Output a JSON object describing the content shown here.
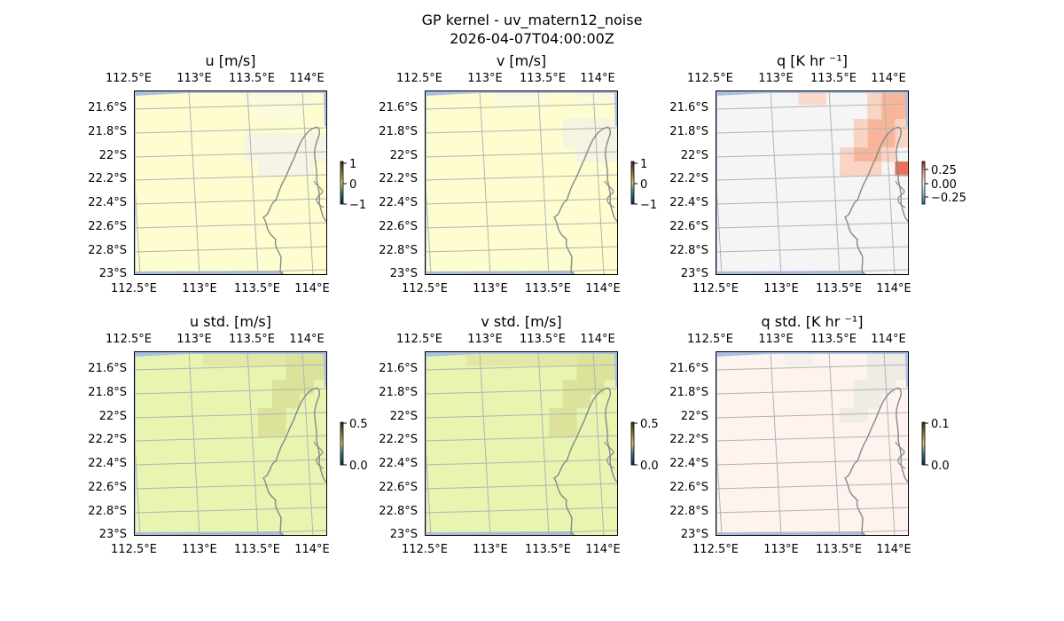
{
  "figure": {
    "title_line1": "GP kernel - uv_matern12_noise",
    "title_line2": "2026-04-07T04:00:00Z"
  },
  "axes": {
    "lon_ticks": [
      "112.5°E",
      "113°E",
      "113.5°E",
      "114°E"
    ],
    "lat_ticks": [
      "21.6°S",
      "21.8°S",
      "22°S",
      "22.2°S",
      "22.4°S",
      "22.6°S",
      "22.8°S",
      "23°S"
    ]
  },
  "colors": {
    "ocean": "#a9bfe3",
    "coast": "#888888",
    "grid": "#b3b3b3"
  },
  "panels": [
    {
      "title": "u [m/s]",
      "colorbar_ticks": [
        "1",
        "0",
        "−1"
      ],
      "background": "#fefdd0",
      "patches": [
        {
          "label": "lighter-nw-coast",
          "color": "#f6f4e4",
          "cells": [
            [
              8,
              3
            ],
            [
              9,
              3
            ],
            [
              10,
              3
            ],
            [
              11,
              3
            ],
            [
              12,
              3
            ],
            [
              13,
              3
            ],
            [
              8,
              4
            ],
            [
              9,
              4
            ],
            [
              10,
              4
            ],
            [
              11,
              4
            ],
            [
              12,
              4
            ],
            [
              13,
              4
            ],
            [
              9,
              5
            ],
            [
              10,
              5
            ],
            [
              11,
              5
            ],
            [
              12,
              5
            ]
          ]
        },
        {
          "label": "pale-top",
          "color": "#fbfadc",
          "cells": [
            [
              8,
              0
            ],
            [
              9,
              0
            ],
            [
              10,
              0
            ],
            [
              11,
              0
            ],
            [
              12,
              0
            ],
            [
              9,
              1
            ],
            [
              10,
              1
            ],
            [
              11,
              1
            ]
          ]
        }
      ]
    },
    {
      "title": "v [m/s]",
      "colorbar_ticks": [
        "1",
        "0",
        "−1"
      ],
      "background": "#fefdd0",
      "patches": [
        {
          "label": "lighter-nw-coast",
          "color": "#f5f3e2",
          "cells": [
            [
              10,
              2
            ],
            [
              11,
              2
            ],
            [
              12,
              2
            ],
            [
              13,
              2
            ],
            [
              10,
              3
            ],
            [
              11,
              3
            ],
            [
              12,
              3
            ],
            [
              13,
              3
            ],
            [
              11,
              4
            ],
            [
              12,
              4
            ],
            [
              13,
              4
            ]
          ]
        },
        {
          "label": "pale-top",
          "color": "#fbfadc",
          "cells": [
            [
              5,
              0
            ],
            [
              6,
              0
            ],
            [
              7,
              0
            ],
            [
              8,
              0
            ],
            [
              11,
              0
            ],
            [
              12,
              0
            ],
            [
              13,
              0
            ]
          ]
        }
      ]
    },
    {
      "title": "q [K hr ⁻¹]",
      "colorbar_ticks": [
        "0.25",
        "0.00",
        "−0.25"
      ],
      "background": "#f5f5f5",
      "patches": [
        {
          "label": "warm-ne-strong",
          "color": "#f7b69a",
          "cells": [
            [
              12,
              0
            ],
            [
              13,
              0
            ],
            [
              12,
              1
            ],
            [
              13,
              1
            ],
            [
              11,
              2
            ],
            [
              12,
              2
            ],
            [
              11,
              3
            ],
            [
              12,
              3
            ],
            [
              10,
              4
            ],
            [
              11,
              4
            ]
          ]
        },
        {
          "label": "warm-ne-medium",
          "color": "#fad4c2",
          "cells": [
            [
              11,
              0
            ],
            [
              11,
              1
            ],
            [
              10,
              2
            ],
            [
              13,
              2
            ],
            [
              10,
              3
            ],
            [
              9,
              4
            ],
            [
              12,
              4
            ],
            [
              9,
              5
            ],
            [
              10,
              5
            ],
            [
              11,
              5
            ],
            [
              13,
              3
            ]
          ]
        },
        {
          "label": "warm-top-left",
          "color": "#fbd9c8",
          "cells": [
            [
              6,
              0
            ],
            [
              7,
              0
            ]
          ]
        },
        {
          "label": "warm-east-dot",
          "color": "#e8735a",
          "cells": [
            [
              13,
              5
            ]
          ]
        }
      ]
    },
    {
      "title": "u std. [m/s]",
      "colorbar_ticks": [
        "0.5",
        "0.0"
      ],
      "background": "#e7f5b0",
      "patches": [
        {
          "label": "olive-ne",
          "color": "#dde29a",
          "cells": [
            [
              11,
              0
            ],
            [
              12,
              0
            ],
            [
              13,
              0
            ],
            [
              11,
              1
            ],
            [
              12,
              1
            ],
            [
              13,
              1
            ],
            [
              10,
              2
            ],
            [
              11,
              2
            ],
            [
              12,
              2
            ],
            [
              10,
              3
            ],
            [
              11,
              3
            ],
            [
              9,
              4
            ],
            [
              10,
              4
            ],
            [
              9,
              5
            ],
            [
              10,
              5
            ]
          ]
        },
        {
          "label": "olive-top",
          "color": "#e2e7a8",
          "cells": [
            [
              5,
              0
            ],
            [
              6,
              0
            ],
            [
              7,
              0
            ],
            [
              8,
              0
            ],
            [
              9,
              0
            ],
            [
              10,
              0
            ]
          ]
        }
      ]
    },
    {
      "title": "v std. [m/s]",
      "colorbar_ticks": [
        "0.5",
        "0.0"
      ],
      "background": "#e7f5b0",
      "patches": [
        {
          "label": "olive-ne",
          "color": "#dde29a",
          "cells": [
            [
              11,
              0
            ],
            [
              12,
              0
            ],
            [
              13,
              0
            ],
            [
              11,
              1
            ],
            [
              12,
              1
            ],
            [
              13,
              1
            ],
            [
              10,
              2
            ],
            [
              11,
              2
            ],
            [
              12,
              2
            ],
            [
              10,
              3
            ],
            [
              11,
              3
            ],
            [
              9,
              4
            ],
            [
              10,
              4
            ],
            [
              9,
              5
            ],
            [
              10,
              5
            ]
          ]
        },
        {
          "label": "olive-top",
          "color": "#e2e7a8",
          "cells": [
            [
              3,
              0
            ],
            [
              4,
              0
            ],
            [
              5,
              0
            ],
            [
              6,
              0
            ],
            [
              7,
              0
            ],
            [
              8,
              0
            ],
            [
              9,
              0
            ],
            [
              10,
              0
            ]
          ]
        }
      ]
    },
    {
      "title": "q std. [K hr ⁻¹]",
      "colorbar_ticks": [
        "0.1",
        "0.0"
      ],
      "background": "#fff3ef",
      "patches": [
        {
          "label": "grey-ne",
          "color": "#efece6",
          "cells": [
            [
              11,
              0
            ],
            [
              12,
              0
            ],
            [
              13,
              0
            ],
            [
              11,
              1
            ],
            [
              12,
              1
            ],
            [
              13,
              1
            ],
            [
              10,
              2
            ],
            [
              11,
              2
            ],
            [
              12,
              2
            ],
            [
              10,
              3
            ],
            [
              11,
              3
            ],
            [
              9,
              4
            ],
            [
              10,
              4
            ]
          ]
        },
        {
          "label": "grey-top",
          "color": "#f3f0ea",
          "cells": [
            [
              5,
              0
            ],
            [
              6,
              0
            ]
          ]
        }
      ]
    }
  ]
}
